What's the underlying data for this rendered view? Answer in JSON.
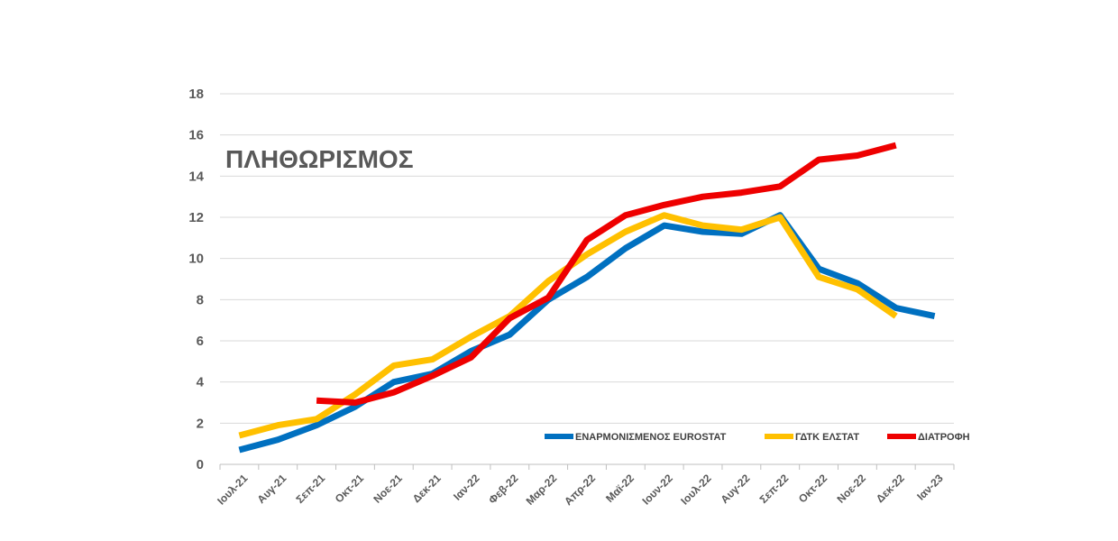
{
  "chart_data": {
    "type": "line",
    "title": "ΠΛΗΘΩΡΙΣΜΟΣ",
    "categories": [
      "Ιουλ-21",
      "Αυγ-21",
      "Σεπ-21",
      "Οκτ-21",
      "Νοε-21",
      "Δεκ-21",
      "Ιαν-22",
      "Φεβ-22",
      "Μαρ-22",
      "Απρ-22",
      "Μαϊ-22",
      "Ιουν-22",
      "Ιουλ-22",
      "Αυγ-22",
      "Σεπ-22",
      "Οκτ-22",
      "Νοε-22",
      "Δεκ-22",
      "Ιαν-23"
    ],
    "ylim": [
      0,
      18
    ],
    "yticks": [
      0,
      2,
      4,
      6,
      8,
      10,
      12,
      14,
      16,
      18
    ],
    "grid": true,
    "legend": "bottom-right",
    "series": [
      {
        "name": "ΕΝΑΡΜΟΝΙΣΜΕΝΟΣ EUROSTAT",
        "color": "#0070C0",
        "values": [
          0.7,
          1.2,
          1.9,
          2.8,
          4.0,
          4.4,
          5.5,
          6.3,
          8.0,
          9.1,
          10.5,
          11.6,
          11.3,
          11.2,
          12.1,
          9.5,
          8.8,
          7.6,
          7.2
        ]
      },
      {
        "name": "ΓΔΤΚ ΕΛΣΤΑΤ",
        "color": "#FFC000",
        "values": [
          1.4,
          1.9,
          2.2,
          3.4,
          4.8,
          5.1,
          6.2,
          7.2,
          8.9,
          10.2,
          11.3,
          12.1,
          11.6,
          11.4,
          12.0,
          9.1,
          8.5,
          7.2,
          null
        ]
      },
      {
        "name": "ΔΙΑΤΡΟΦΗ",
        "color": "#EE0000",
        "values": [
          null,
          null,
          3.1,
          3.0,
          3.5,
          4.3,
          5.2,
          7.1,
          8.1,
          10.9,
          12.1,
          12.6,
          13.0,
          13.2,
          13.5,
          14.8,
          15.0,
          15.5,
          null
        ]
      }
    ]
  }
}
